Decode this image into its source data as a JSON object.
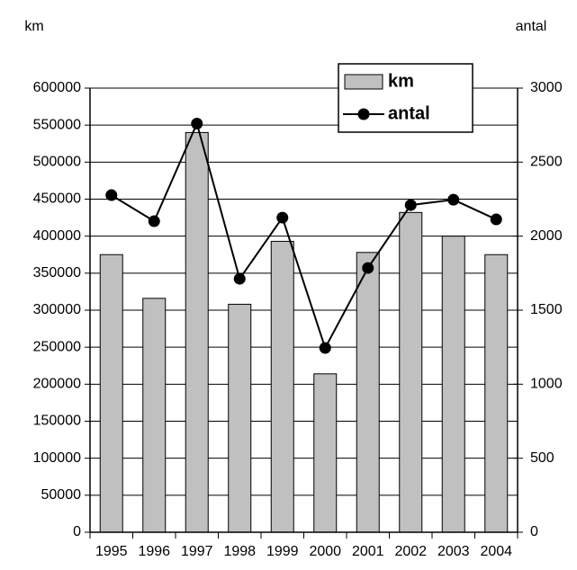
{
  "chart_data": {
    "type": "bar_line",
    "y_axis_label": "km",
    "y2_axis_label": "antal",
    "categories": [
      "1995",
      "1996",
      "1997",
      "1998",
      "1999",
      "2000",
      "2001",
      "2002",
      "2003",
      "2004"
    ],
    "series": [
      {
        "name": "km",
        "type": "bar",
        "color": "#c0c0c0",
        "values": [
          375000,
          316000,
          540000,
          308000,
          393000,
          214000,
          378000,
          432000,
          400000,
          375000
        ]
      },
      {
        "name": "antal",
        "type": "line",
        "axis": "y2",
        "color": "#000000",
        "values": [
          2277,
          2101,
          2760,
          1712,
          2125,
          1245,
          1785,
          2210,
          2246,
          2113
        ]
      }
    ],
    "ylim": [
      0,
      600000
    ],
    "yticks": [
      0,
      50000,
      100000,
      150000,
      200000,
      250000,
      300000,
      350000,
      400000,
      450000,
      500000,
      550000,
      600000
    ],
    "y2lim": [
      0,
      3000
    ],
    "y2ticks": [
      0,
      500,
      1000,
      1500,
      2000,
      2500,
      3000
    ],
    "grid": true,
    "legend": "top-right"
  }
}
